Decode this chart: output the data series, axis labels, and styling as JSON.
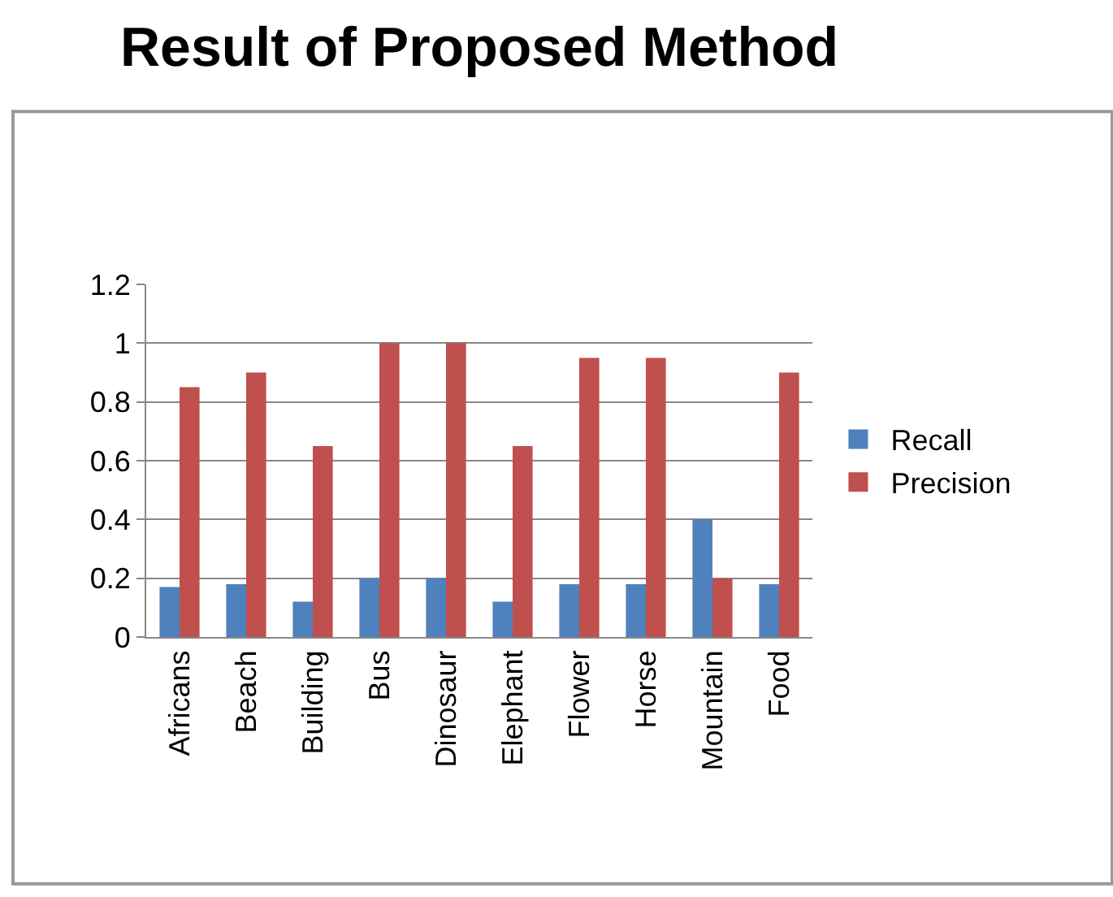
{
  "chart_data": {
    "type": "bar",
    "title": "Result of Proposed Method",
    "categories": [
      "Africans",
      "Beach",
      "Building",
      "Bus",
      "Dinosaur",
      "Elephant",
      "Flower",
      "Horse",
      "Mountain",
      "Food"
    ],
    "series": [
      {
        "name": "Recall",
        "color": "#4f81bd",
        "values": [
          0.17,
          0.18,
          0.12,
          0.2,
          0.2,
          0.12,
          0.18,
          0.18,
          0.4,
          0.18
        ]
      },
      {
        "name": "Precision",
        "color": "#c0504d",
        "values": [
          0.85,
          0.9,
          0.65,
          1,
          1,
          0.65,
          0.95,
          0.95,
          0.2,
          0.9
        ]
      }
    ],
    "ylim": [
      0,
      1.2
    ],
    "yticks": [
      0,
      0.2,
      0.4,
      0.6,
      0.8,
      1,
      1.2
    ],
    "grid": "y",
    "legend": "right"
  }
}
